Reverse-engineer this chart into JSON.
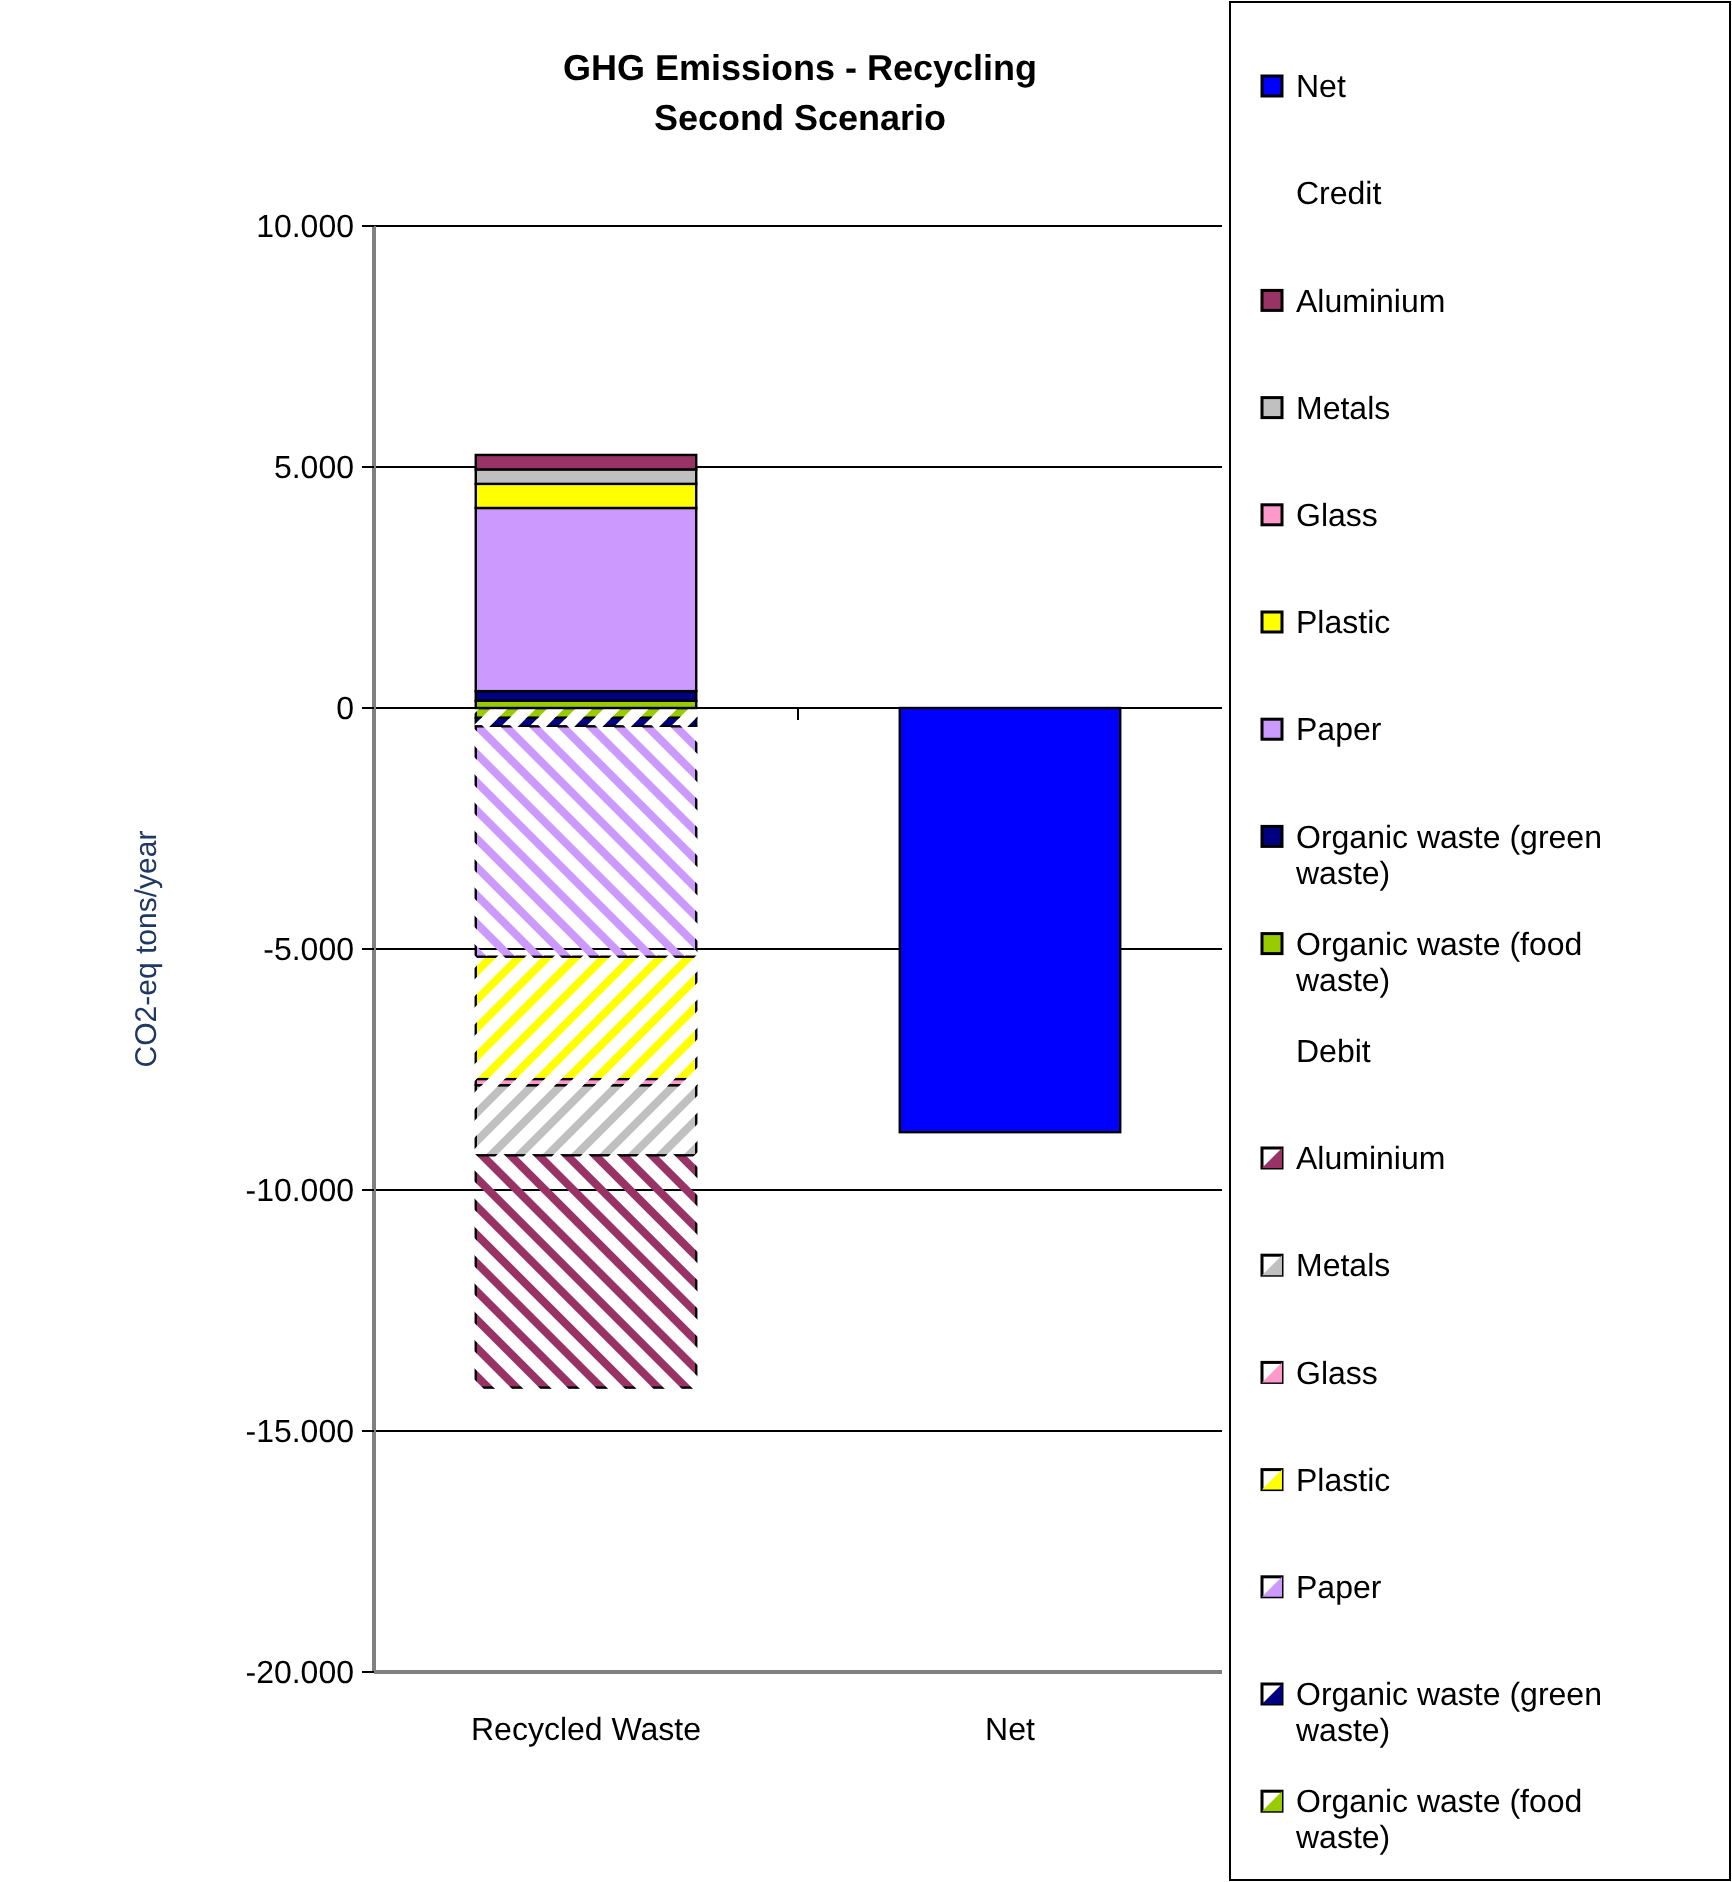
{
  "chart_data": {
    "type": "bar",
    "title": "GHG  Emissions - Recycling\nSecond Scenario",
    "ylabel": "CO2-eq tons/year",
    "categories": [
      "Recycled Waste",
      "Net"
    ],
    "stacked": true,
    "series": [
      {
        "name": "Organic waste (food waste)",
        "color": "#99cc00",
        "values": [
          -200,
          null
        ]
      },
      {
        "name": "Organic waste (green waste)",
        "color": "#000080",
        "values": [
          -180,
          null
        ]
      },
      {
        "name": "Paper",
        "color": "#cc99ff",
        "values": [
          -4780,
          null
        ]
      },
      {
        "name": "Plastic",
        "color": "#ffff00",
        "values": [
          -2540,
          null
        ]
      },
      {
        "name": "Glass",
        "color": "#ff99cc",
        "values": [
          -130,
          null
        ]
      },
      {
        "name": "Metals",
        "color": "#c0c0c0",
        "values": [
          -1450,
          null
        ]
      },
      {
        "name": "Aluminium",
        "color": "#993366",
        "values": [
          -4820,
          null
        ]
      },
      {
        "name": "Organic waste (food waste)",
        "color": "#99cc00",
        "values": [
          150,
          null
        ]
      },
      {
        "name": "Organic waste (green waste)",
        "color": "#000080",
        "values": [
          200,
          null
        ]
      },
      {
        "name": "Paper",
        "color": "#cc99ff",
        "values": [
          3800,
          null
        ]
      },
      {
        "name": "Plastic",
        "color": "#ffff00",
        "values": [
          500,
          null
        ]
      },
      {
        "name": "Glass",
        "color": "#ff99cc",
        "values": [
          null,
          null
        ]
      },
      {
        "name": "Metals",
        "color": "#c0c0c0",
        "values": [
          300,
          null
        ]
      },
      {
        "name": "Aluminium",
        "color": "#993366",
        "values": [
          300,
          null
        ]
      },
      {
        "name": "Net",
        "color": "#0000ff",
        "values": [
          null,
          -8800
        ]
      }
    ],
    "annotations": [
      "Credit",
      "Debit"
    ],
    "ylim": [
      -20000,
      10000
    ],
    "yticks": [
      {
        "value": -20000,
        "label": "-20.000"
      },
      {
        "value": -15000,
        "label": "-15.000"
      },
      {
        "value": -10000,
        "label": "-10.000"
      },
      {
        "value": -5000,
        "label": "-5.000"
      },
      0,
      {
        "value": 5000,
        "label": "5.000"
      },
      {
        "value": 10000,
        "label": "10.000"
      }
    ],
    "grid": "y",
    "legend": "right"
  }
}
